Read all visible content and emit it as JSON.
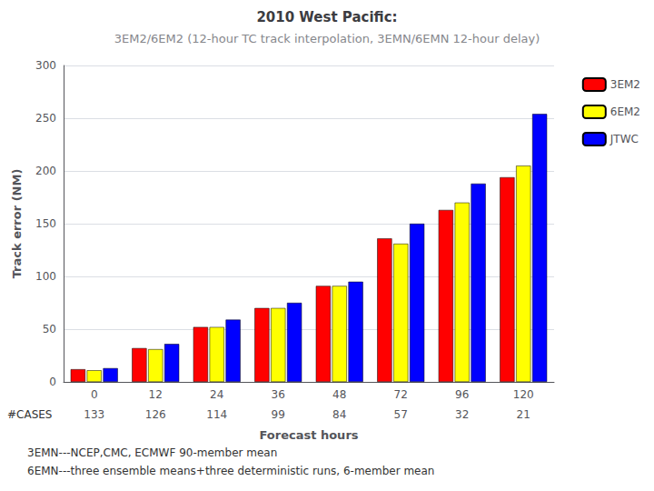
{
  "chart_data": {
    "type": "bar",
    "title": "2010 West Pacific:",
    "subtitle": "3EM2/6EM2 (12-hour TC track interpolation, 3EMN/6EMN 12-hour delay)",
    "x_label": "Forecast hours",
    "y_label": "Track error (NM)",
    "categories": [
      "0",
      "12",
      "24",
      "36",
      "48",
      "72",
      "96",
      "120"
    ],
    "series": [
      {
        "name": "3EM2",
        "color": "#FF0000",
        "values": [
          12,
          32,
          52,
          70,
          91,
          136,
          163,
          194
        ]
      },
      {
        "name": "6EM2",
        "color": "#FFFF00",
        "values": [
          11,
          31,
          52,
          70,
          91,
          131,
          170,
          205
        ]
      },
      {
        "name": "JTWC",
        "color": "#0000FF",
        "values": [
          13,
          36,
          59,
          75,
          95,
          150,
          188,
          254
        ]
      }
    ],
    "cases": {
      "label": "#CASES",
      "values": [
        133,
        126,
        114,
        99,
        84,
        57,
        32,
        21
      ]
    },
    "annotations": [
      "3EMN---NCEP,CMC, ECMWF 90-member mean",
      "6EMN---three ensemble means+three deterministic runs, 6-member mean"
    ],
    "ylim": [
      0,
      300
    ],
    "yticks": [
      0,
      50,
      100,
      150,
      200,
      250,
      300
    ],
    "grid": true,
    "legend": "right"
  }
}
